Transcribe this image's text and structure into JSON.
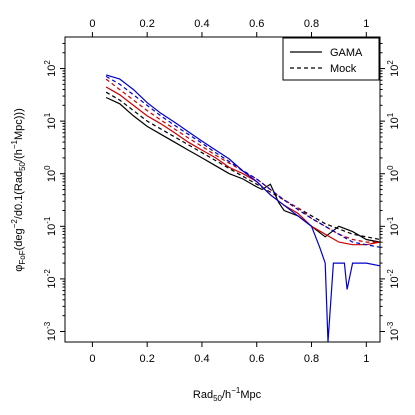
{
  "chart_data": {
    "type": "line",
    "xlabel_main": "Rad",
    "xlabel_sub": "50",
    "xlabel_tail": "/h",
    "xlabel_sup": "−1",
    "xlabel_unit": "Mpc",
    "ylabel_phi": "φ",
    "ylabel_sub": "FoF",
    "ylabel_a": "(deg",
    "ylabel_a_sup": "−2",
    "ylabel_b": "/d0.1(Rad",
    "ylabel_b_sub": "50",
    "ylabel_c": "/(h",
    "ylabel_c_sup": "−1",
    "ylabel_d": "Mpc)))",
    "xlim": [
      -0.1,
      1.05
    ],
    "ylim_log10": [
      -3.2,
      2.6
    ],
    "x_ticks": [
      "0",
      "0.2",
      "0.4",
      "0.6",
      "0.8",
      "1"
    ],
    "x_tick_values": [
      0,
      0.2,
      0.4,
      0.6,
      0.8,
      1.0
    ],
    "y_ticks": [
      {
        "base": "10",
        "exp": "-3",
        "value": -3
      },
      {
        "base": "10",
        "exp": "-2",
        "value": -2
      },
      {
        "base": "10",
        "exp": "-1",
        "value": -1
      },
      {
        "base": "10",
        "exp": "0",
        "value": 0
      },
      {
        "base": "10",
        "exp": "1",
        "value": 1
      },
      {
        "base": "10",
        "exp": "2",
        "value": 2
      }
    ],
    "legend": [
      {
        "label": "GAMA",
        "dash": "solid"
      },
      {
        "label": "Mock",
        "dash": "dashed"
      }
    ],
    "series": [
      {
        "color": "#000000",
        "style": "solid",
        "x": [
          0.05,
          0.1,
          0.15,
          0.2,
          0.25,
          0.3,
          0.35,
          0.4,
          0.45,
          0.5,
          0.55,
          0.6,
          0.62,
          0.65,
          0.68,
          0.7,
          0.75,
          0.8,
          0.85,
          0.9,
          0.95,
          1.0,
          1.05
        ],
        "log10y": [
          1.45,
          1.33,
          1.1,
          0.9,
          0.75,
          0.6,
          0.45,
          0.3,
          0.15,
          0.0,
          -0.1,
          -0.25,
          -0.3,
          -0.2,
          -0.55,
          -0.7,
          -0.8,
          -1.0,
          -1.2,
          -1.0,
          -1.1,
          -1.25,
          -1.3
        ]
      },
      {
        "color": "#000000",
        "style": "dashed",
        "x": [
          0.05,
          0.1,
          0.15,
          0.2,
          0.25,
          0.3,
          0.35,
          0.4,
          0.45,
          0.5,
          0.55,
          0.6,
          0.65,
          0.7,
          0.75,
          0.8,
          0.85,
          0.9,
          0.95,
          1.0,
          1.05
        ],
        "log10y": [
          1.55,
          1.4,
          1.2,
          1.0,
          0.85,
          0.7,
          0.55,
          0.4,
          0.25,
          0.1,
          -0.05,
          -0.2,
          -0.35,
          -0.5,
          -0.65,
          -0.8,
          -0.95,
          -1.05,
          -1.15,
          -1.2,
          -1.25
        ]
      },
      {
        "color": "#cc0000",
        "style": "solid",
        "x": [
          0.05,
          0.1,
          0.15,
          0.2,
          0.25,
          0.3,
          0.35,
          0.4,
          0.45,
          0.5,
          0.55,
          0.6,
          0.65,
          0.7,
          0.75,
          0.8,
          0.85,
          0.9,
          0.95,
          1.0,
          1.05
        ],
        "log10y": [
          1.65,
          1.5,
          1.3,
          1.1,
          0.95,
          0.78,
          0.6,
          0.45,
          0.3,
          0.12,
          0.0,
          -0.15,
          -0.4,
          -0.6,
          -0.75,
          -1.0,
          -1.15,
          -1.3,
          -1.35,
          -1.35,
          -1.3
        ]
      },
      {
        "color": "#cc0000",
        "style": "dashed",
        "x": [
          0.05,
          0.1,
          0.15,
          0.2,
          0.25,
          0.3,
          0.35,
          0.4,
          0.45,
          0.5,
          0.55,
          0.6,
          0.65,
          0.7,
          0.75,
          0.8,
          0.85,
          0.9,
          0.95,
          1.0,
          1.05
        ],
        "log10y": [
          1.8,
          1.6,
          1.4,
          1.2,
          1.02,
          0.85,
          0.68,
          0.52,
          0.35,
          0.2,
          0.05,
          -0.1,
          -0.3,
          -0.5,
          -0.65,
          -0.85,
          -1.0,
          -1.15,
          -1.25,
          -1.3,
          -1.3
        ]
      },
      {
        "color": "#0000cc",
        "style": "solid",
        "x": [
          0.05,
          0.1,
          0.15,
          0.2,
          0.25,
          0.3,
          0.35,
          0.4,
          0.45,
          0.5,
          0.55,
          0.6,
          0.65,
          0.7,
          0.75,
          0.8,
          0.83,
          0.85,
          0.86,
          0.88,
          0.92,
          0.93,
          0.95,
          1.0,
          1.05
        ],
        "log10y": [
          1.88,
          1.8,
          1.6,
          1.35,
          1.15,
          0.98,
          0.8,
          0.62,
          0.45,
          0.28,
          0.05,
          -0.15,
          -0.4,
          -0.6,
          -0.8,
          -1.0,
          -1.4,
          -1.7,
          -3.2,
          -1.7,
          -1.7,
          -2.2,
          -1.7,
          -1.7,
          -1.75
        ]
      },
      {
        "color": "#0000cc",
        "style": "dashed",
        "x": [
          0.05,
          0.1,
          0.15,
          0.2,
          0.25,
          0.3,
          0.35,
          0.4,
          0.45,
          0.5,
          0.55,
          0.6,
          0.65,
          0.7,
          0.75,
          0.8,
          0.85,
          0.9,
          0.95,
          1.0,
          1.05
        ],
        "log10y": [
          1.85,
          1.7,
          1.5,
          1.3,
          1.1,
          0.92,
          0.75,
          0.58,
          0.4,
          0.23,
          0.06,
          -0.1,
          -0.3,
          -0.5,
          -0.68,
          -0.85,
          -1.0,
          -1.15,
          -1.3,
          -1.35,
          -1.4
        ]
      }
    ]
  }
}
